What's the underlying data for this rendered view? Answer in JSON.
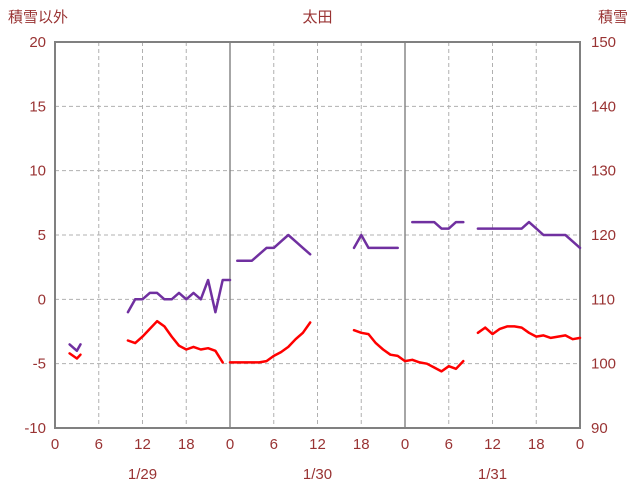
{
  "colors": {
    "text": "#993333",
    "grid": "#b0b0b0",
    "frame": "#808080",
    "background": "#ffffff",
    "purple_series": "#7030A0",
    "red_series": "#FF0000"
  },
  "chart_data": {
    "type": "line",
    "title": "太田",
    "left_axis": {
      "label": "積雪以外",
      "min": -10,
      "max": 20,
      "ticks": [
        20,
        15,
        10,
        5,
        0,
        -5,
        -10
      ]
    },
    "right_axis": {
      "label": "積雪",
      "min": 90,
      "max": 150,
      "ticks": [
        150,
        140,
        130,
        120,
        110,
        100,
        90
      ]
    },
    "x_axis": {
      "min": 0,
      "max": 72,
      "tick_hours": [
        0,
        6,
        12,
        18,
        24,
        30,
        36,
        42,
        48,
        54,
        60,
        66,
        72
      ],
      "tick_labels": [
        "0",
        "6",
        "12",
        "18",
        "0",
        "6",
        "12",
        "18",
        "0",
        "6",
        "12",
        "18",
        "0"
      ],
      "day_divider_hours": [
        24,
        48
      ],
      "date_labels": [
        {
          "hour": 12,
          "label": "1/29"
        },
        {
          "hour": 36,
          "label": "1/30"
        },
        {
          "hour": 60,
          "label": "1/31"
        }
      ]
    },
    "grid": true,
    "legend": "none",
    "series": [
      {
        "name": "snow-depth",
        "color": "#7030A0",
        "axis": "right",
        "segments": [
          [
            [
              2,
              103
            ],
            [
              3,
              102
            ],
            [
              3.5,
              103
            ]
          ],
          [
            [
              10,
              108
            ],
            [
              11,
              110
            ],
            [
              12,
              110
            ],
            [
              13,
              111
            ],
            [
              14,
              111
            ],
            [
              15,
              110
            ],
            [
              16,
              110
            ],
            [
              17,
              111
            ],
            [
              18,
              110
            ],
            [
              19,
              111
            ],
            [
              20,
              110
            ],
            [
              21,
              113
            ],
            [
              22,
              108
            ],
            [
              23,
              113
            ],
            [
              24,
              113
            ]
          ],
          [
            [
              25,
              116
            ],
            [
              26,
              116
            ],
            [
              27,
              116
            ],
            [
              28,
              117
            ],
            [
              29,
              118
            ],
            [
              30,
              118
            ],
            [
              31,
              119
            ],
            [
              32,
              120
            ],
            [
              33,
              119
            ],
            [
              34,
              118
            ],
            [
              35,
              117
            ]
          ],
          [
            [
              41,
              118
            ],
            [
              42,
              120
            ],
            [
              43,
              118
            ],
            [
              44,
              118
            ],
            [
              45,
              118
            ],
            [
              46,
              118
            ],
            [
              47,
              118
            ]
          ],
          [
            [
              49,
              122
            ],
            [
              50,
              122
            ],
            [
              51,
              122
            ],
            [
              52,
              122
            ],
            [
              53,
              121
            ],
            [
              54,
              121
            ],
            [
              55,
              122
            ],
            [
              56,
              122
            ]
          ],
          [
            [
              58,
              121
            ],
            [
              59,
              121
            ],
            [
              60,
              121
            ],
            [
              61,
              121
            ],
            [
              62,
              121
            ],
            [
              63,
              121
            ],
            [
              64,
              121
            ],
            [
              65,
              122
            ],
            [
              66,
              121
            ],
            [
              67,
              120
            ],
            [
              68,
              120
            ],
            [
              69,
              120
            ],
            [
              70,
              120
            ],
            [
              71,
              119
            ],
            [
              72,
              118
            ]
          ]
        ]
      },
      {
        "name": "temperature",
        "color": "#FF0000",
        "axis": "left",
        "segments": [
          [
            [
              2,
              -4.2
            ],
            [
              3,
              -4.6
            ],
            [
              3.5,
              -4.3
            ]
          ],
          [
            [
              10,
              -3.2
            ],
            [
              11,
              -3.4
            ],
            [
              12,
              -2.9
            ],
            [
              13,
              -2.3
            ],
            [
              14,
              -1.7
            ],
            [
              15,
              -2.1
            ],
            [
              16,
              -2.9
            ],
            [
              17,
              -3.6
            ],
            [
              18,
              -3.9
            ],
            [
              19,
              -3.7
            ],
            [
              20,
              -3.9
            ],
            [
              21,
              -3.8
            ],
            [
              22,
              -4.0
            ],
            [
              23,
              -4.9
            ]
          ],
          [
            [
              24,
              -4.9
            ],
            [
              25,
              -4.9
            ],
            [
              26,
              -4.9
            ],
            [
              27,
              -4.9
            ],
            [
              28,
              -4.9
            ],
            [
              29,
              -4.8
            ],
            [
              30,
              -4.4
            ],
            [
              31,
              -4.1
            ],
            [
              32,
              -3.7
            ],
            [
              33,
              -3.1
            ],
            [
              34,
              -2.6
            ],
            [
              35,
              -1.8
            ]
          ],
          [
            [
              41,
              -2.4
            ],
            [
              42,
              -2.6
            ],
            [
              43,
              -2.7
            ],
            [
              44,
              -3.4
            ],
            [
              45,
              -3.9
            ],
            [
              46,
              -4.3
            ],
            [
              47,
              -4.4
            ],
            [
              48,
              -4.8
            ],
            [
              49,
              -4.7
            ],
            [
              50,
              -4.9
            ],
            [
              51,
              -5.0
            ],
            [
              52,
              -5.3
            ],
            [
              53,
              -5.6
            ],
            [
              54,
              -5.2
            ],
            [
              55,
              -5.4
            ],
            [
              56,
              -4.8
            ]
          ],
          [
            [
              58,
              -2.6
            ],
            [
              59,
              -2.2
            ],
            [
              60,
              -2.7
            ],
            [
              61,
              -2.3
            ],
            [
              62,
              -2.1
            ],
            [
              63,
              -2.1
            ],
            [
              64,
              -2.2
            ],
            [
              65,
              -2.6
            ],
            [
              66,
              -2.9
            ],
            [
              67,
              -2.8
            ],
            [
              68,
              -3.0
            ],
            [
              69,
              -2.9
            ],
            [
              70,
              -2.8
            ],
            [
              71,
              -3.1
            ],
            [
              72,
              -3.0
            ]
          ]
        ]
      }
    ]
  }
}
